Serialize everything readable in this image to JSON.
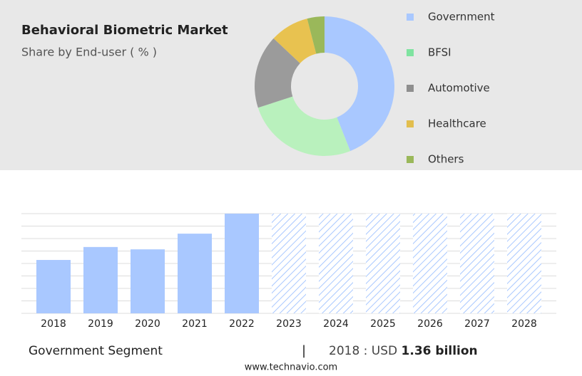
{
  "chart_data": [
    {
      "type": "pie",
      "title": "Behavioral Biometric Market",
      "subtitle": "Share by End-user ( % )",
      "categories": [
        "Government",
        "BFSI",
        "Automotive",
        "Healthcare",
        "Others"
      ],
      "values": [
        44,
        26,
        17,
        9,
        4
      ],
      "colors": [
        "#a9c8ff",
        "#b9f1bd",
        "#9b9b9b",
        "#e8c250",
        "#9ab85a"
      ],
      "legend_colors": [
        "#a9c8ff",
        "#7fe3a0",
        "#8f8f8f",
        "#e2be4e",
        "#9ab85a"
      ],
      "donut": true
    },
    {
      "type": "bar",
      "categories": [
        "2018",
        "2019",
        "2020",
        "2021",
        "2022",
        "2023",
        "2024",
        "2025",
        "2026",
        "2027",
        "2028"
      ],
      "values": [
        1.36,
        1.69,
        1.63,
        2.03,
        2.54,
        null,
        null,
        null,
        null,
        null,
        null
      ],
      "color": "#a9c8ff",
      "ylim": [
        0,
        2.54
      ],
      "grid": true
    }
  ],
  "footer": {
    "segment": "Government Segment",
    "separator": "|",
    "year_label": "2018 : USD",
    "value_label": "1.36 billion",
    "source": "www.technavio.com"
  }
}
